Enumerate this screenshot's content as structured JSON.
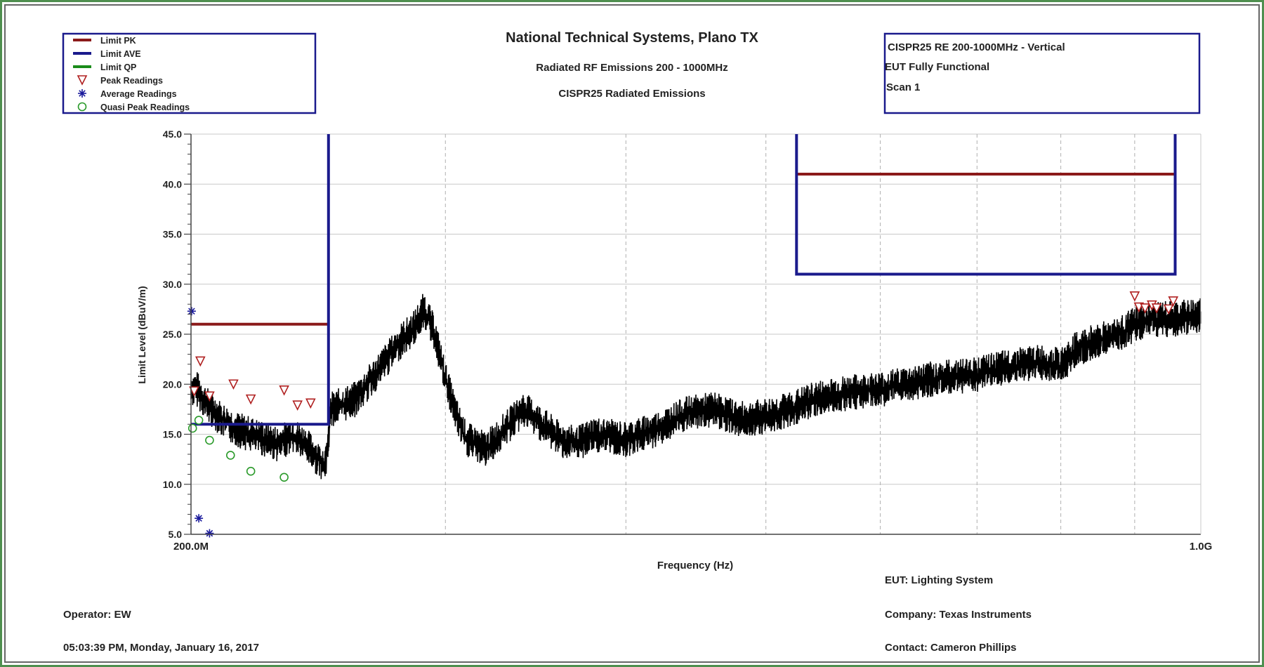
{
  "header": {
    "title": "National Technical Systems, Plano TX",
    "subtitle": "Radiated RF Emissions 200 - 1000MHz",
    "subtitle2": "CISPR25 Radiated Emissions"
  },
  "info_box": {
    "line1": "CISPR25 RE 200-1000MHz - Vertical",
    "line2": "EUT Fully Functional",
    "line3": "Scan 1"
  },
  "footer": {
    "eut": "EUT: Lighting System",
    "operator": "Operator: EW",
    "company": "Company: Texas Instruments",
    "timestamp": "05:03:39 PM, Monday, January 16, 2017",
    "contact": "Contact: Cameron Phillips"
  },
  "colors": {
    "limit_pk": "#8b1a1a",
    "limit_ave": "#1a1a8c",
    "limit_qp": "#1a8c1a",
    "peak_marker": "#b02020",
    "avg_marker": "#1a1a9c",
    "qp_marker": "#2a9a2a",
    "trace": "#000000",
    "frame": "#4f8f4f"
  },
  "chart_data": {
    "type": "line",
    "xscale": "log",
    "xlim": [
      200,
      1000
    ],
    "ylim": [
      5,
      45
    ],
    "xlabel": "Frequency (Hz)",
    "ylabel": "Limit Level (dBuV/m)",
    "x_tick_labels": [
      "200.0M",
      "1.0G"
    ],
    "y_ticks": [
      5,
      10,
      15,
      20,
      25,
      30,
      35,
      40,
      45
    ],
    "y_tick_labels": [
      "5.0",
      "10.0",
      "15.0",
      "20.0",
      "25.0",
      "30.0",
      "35.0",
      "40.0",
      "45.0"
    ],
    "x_gridlines": [
      300,
      400,
      500,
      600,
      700,
      800,
      900
    ],
    "legend_position": "top-left",
    "legend": [
      {
        "name": "Limit PK",
        "kind": "line",
        "color": "#8b1a1a"
      },
      {
        "name": "Limit AVE",
        "kind": "line",
        "color": "#1a1a8c"
      },
      {
        "name": "Limit QP",
        "kind": "line",
        "color": "#1a8c1a"
      },
      {
        "name": "Peak Readings",
        "kind": "triangle",
        "color": "#b02020"
      },
      {
        "name": "Average Readings",
        "kind": "asterisk",
        "color": "#1a1a9c"
      },
      {
        "name": "Quasi Peak Readings",
        "kind": "circle",
        "color": "#2a9a2a"
      }
    ],
    "limit_pk": [
      {
        "x": [
          200,
          249
        ],
        "y": [
          26,
          26
        ]
      },
      {
        "x": [
          526,
          960
        ],
        "y": [
          41,
          41
        ]
      }
    ],
    "limit_ave": [
      {
        "x": [
          200,
          249,
          249,
          249
        ],
        "y": [
          16,
          16,
          16,
          45
        ]
      },
      {
        "x": [
          525,
          525,
          960,
          960
        ],
        "y": [
          45,
          31,
          31,
          45
        ]
      }
    ],
    "peak_readings": [
      {
        "x": 201,
        "y": 19.3
      },
      {
        "x": 203,
        "y": 22.3
      },
      {
        "x": 206,
        "y": 18.8
      },
      {
        "x": 214,
        "y": 20.0
      },
      {
        "x": 220,
        "y": 18.5
      },
      {
        "x": 232,
        "y": 19.4
      },
      {
        "x": 237,
        "y": 17.9
      },
      {
        "x": 242,
        "y": 18.1
      },
      {
        "x": 900,
        "y": 28.8
      },
      {
        "x": 906,
        "y": 27.7
      },
      {
        "x": 915,
        "y": 27.6
      },
      {
        "x": 925,
        "y": 27.9
      },
      {
        "x": 932,
        "y": 27.6
      },
      {
        "x": 950,
        "y": 27.5
      },
      {
        "x": 957,
        "y": 28.3
      }
    ],
    "average_readings": [
      {
        "x": 200.2,
        "y": 27.3
      },
      {
        "x": 202.5,
        "y": 6.6
      },
      {
        "x": 206,
        "y": 5.1
      }
    ],
    "quasi_peak_readings": [
      {
        "x": 200.5,
        "y": 15.6
      },
      {
        "x": 202.5,
        "y": 16.4
      },
      {
        "x": 206,
        "y": 14.4
      },
      {
        "x": 213,
        "y": 12.9
      },
      {
        "x": 220,
        "y": 11.3
      },
      {
        "x": 232,
        "y": 10.7
      }
    ],
    "trace": {
      "name": "Measured trace",
      "x": [
        200,
        202,
        205,
        210,
        215,
        220,
        225,
        230,
        235,
        240,
        245,
        248,
        250,
        255,
        260,
        265,
        270,
        275,
        280,
        285,
        290,
        295,
        300,
        305,
        310,
        320,
        330,
        340,
        350,
        360,
        370,
        380,
        400,
        420,
        440,
        460,
        480,
        500,
        520,
        540,
        560,
        600,
        650,
        700,
        750,
        780,
        800,
        820,
        850,
        880,
        900,
        930,
        960,
        1000
      ],
      "y": [
        19.5,
        19.5,
        18.0,
        16.5,
        15.5,
        15.0,
        14.5,
        14.0,
        15.0,
        14.0,
        12.5,
        12.0,
        17.5,
        18.0,
        18.5,
        20.0,
        21.5,
        23.0,
        24.5,
        25.5,
        27.5,
        25.0,
        20.5,
        17.0,
        14.5,
        13.5,
        15.5,
        17.5,
        16.0,
        14.5,
        14.0,
        15.0,
        14.5,
        15.5,
        17.0,
        17.5,
        16.5,
        16.8,
        17.5,
        18.5,
        19.0,
        19.5,
        20.5,
        21.0,
        22.0,
        22.2,
        21.8,
        23.5,
        24.5,
        25.0,
        26.0,
        26.5,
        26.5,
        27.0
      ]
    },
    "trace_band": 1.8
  }
}
